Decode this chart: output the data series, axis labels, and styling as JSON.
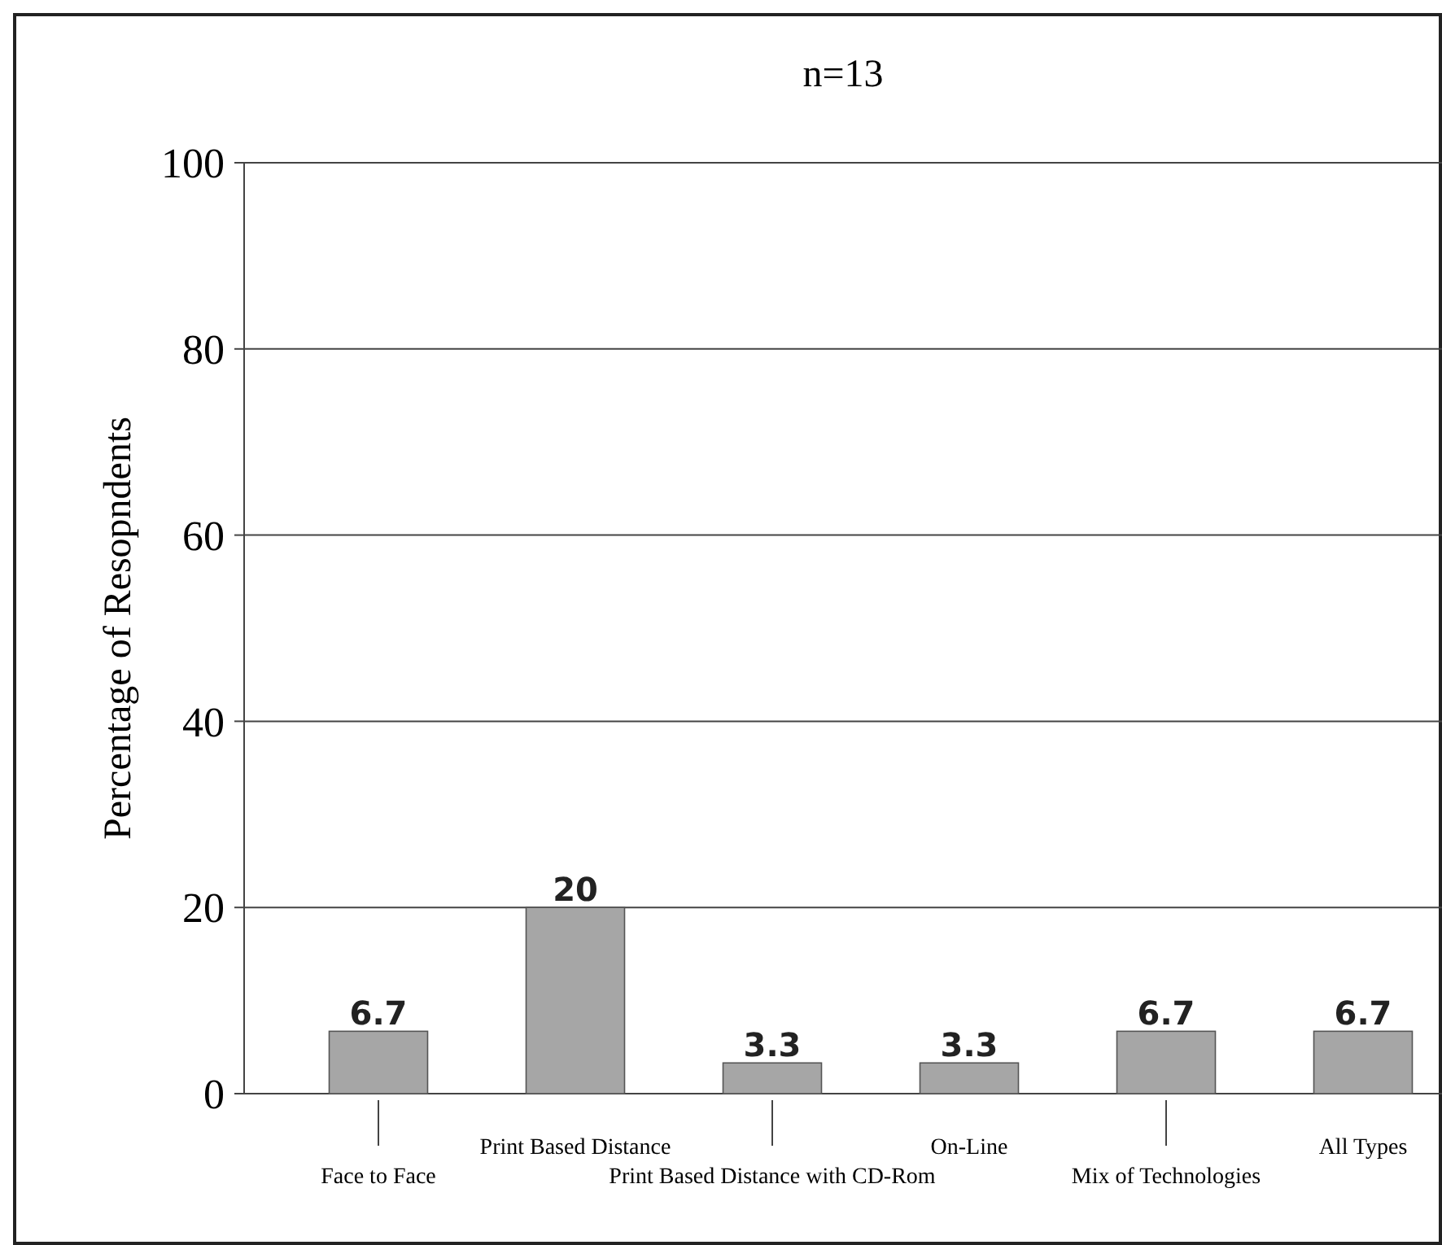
{
  "chart_data": {
    "type": "bar",
    "title": "n=13",
    "ylabel": "Percentage of Resopndents",
    "categories": [
      "Face to Face",
      "Print Based Distance",
      "Print Based Distance with CD-Rom",
      "On-Line",
      "Mix of Technologies",
      "All Types"
    ],
    "values": [
      6.7,
      20,
      3.3,
      3.3,
      6.7,
      6.7
    ],
    "color": "#a6a6a6",
    "ylim": [
      0,
      100
    ],
    "yticks": [
      0,
      20,
      40,
      60,
      80,
      100
    ],
    "grid": "y",
    "data_labels": true
  }
}
